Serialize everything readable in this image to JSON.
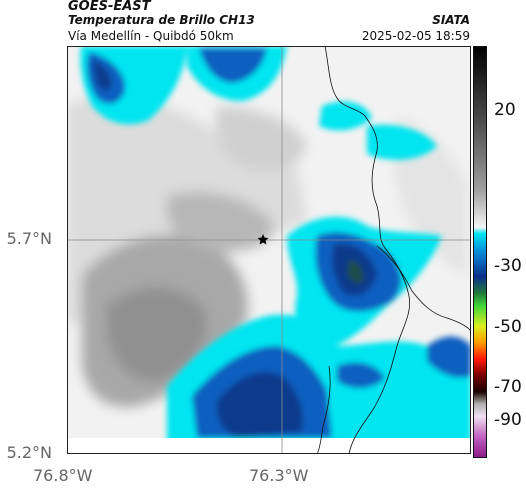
{
  "header": {
    "satellite": "GOES-EAST",
    "product": "Temperatura de Brillo CH13",
    "location": "Vía Medellín - Quibdó 50km",
    "organization": "SIATA",
    "datetime": "2025-02-05 18:59"
  },
  "axes": {
    "lat_labels": [
      "5.7°N",
      "5.2°N"
    ],
    "lon_labels": [
      "76.8°W",
      "76.3°W"
    ]
  },
  "colorbar": {
    "ticks": [
      "20",
      "-30",
      "-50",
      "-70",
      "-90"
    ]
  },
  "colors": {
    "cloud_cyan": "#00e5f0",
    "cloud_blue": "#0a3f9e",
    "warm_gray": "#a9a9a9",
    "border_line": "#111111"
  }
}
